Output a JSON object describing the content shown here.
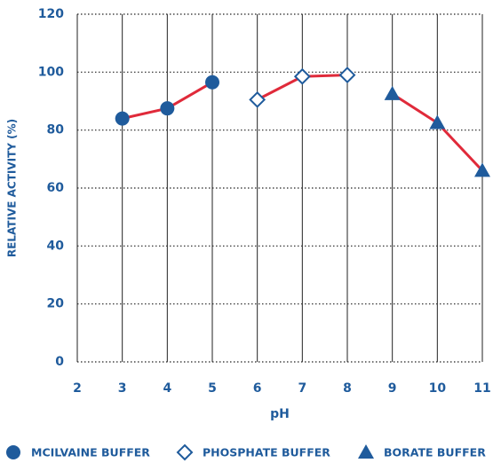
{
  "chart_data": {
    "type": "line",
    "x_label": "pH",
    "y_label": "RELATIVE ACTIVITY (%)",
    "xlim": [
      2,
      11
    ],
    "xticks": [
      2,
      3,
      4,
      5,
      6,
      7,
      8,
      9,
      10,
      11
    ],
    "ylim": [
      0,
      120
    ],
    "yticks": [
      0,
      20,
      40,
      60,
      80,
      100,
      120
    ],
    "grid": true,
    "legend": "bottom",
    "line_color": "#e02a3a",
    "series": [
      {
        "name": "MCILVAINE BUFFER",
        "marker": "circle",
        "color": "#1f5b9c",
        "x": [
          3,
          4,
          5
        ],
        "values": [
          84,
          87.5,
          96.5
        ]
      },
      {
        "name": "PHOSPHATE BUFFER",
        "marker": "diamond-open",
        "color": "#1f5b9c",
        "x": [
          6,
          7,
          8
        ],
        "values": [
          90.5,
          98.5,
          99
        ]
      },
      {
        "name": "BORATE BUFFER",
        "marker": "triangle",
        "color": "#1f5b9c",
        "x": [
          9,
          10,
          11
        ],
        "values": [
          92.5,
          82.5,
          66
        ]
      }
    ]
  }
}
